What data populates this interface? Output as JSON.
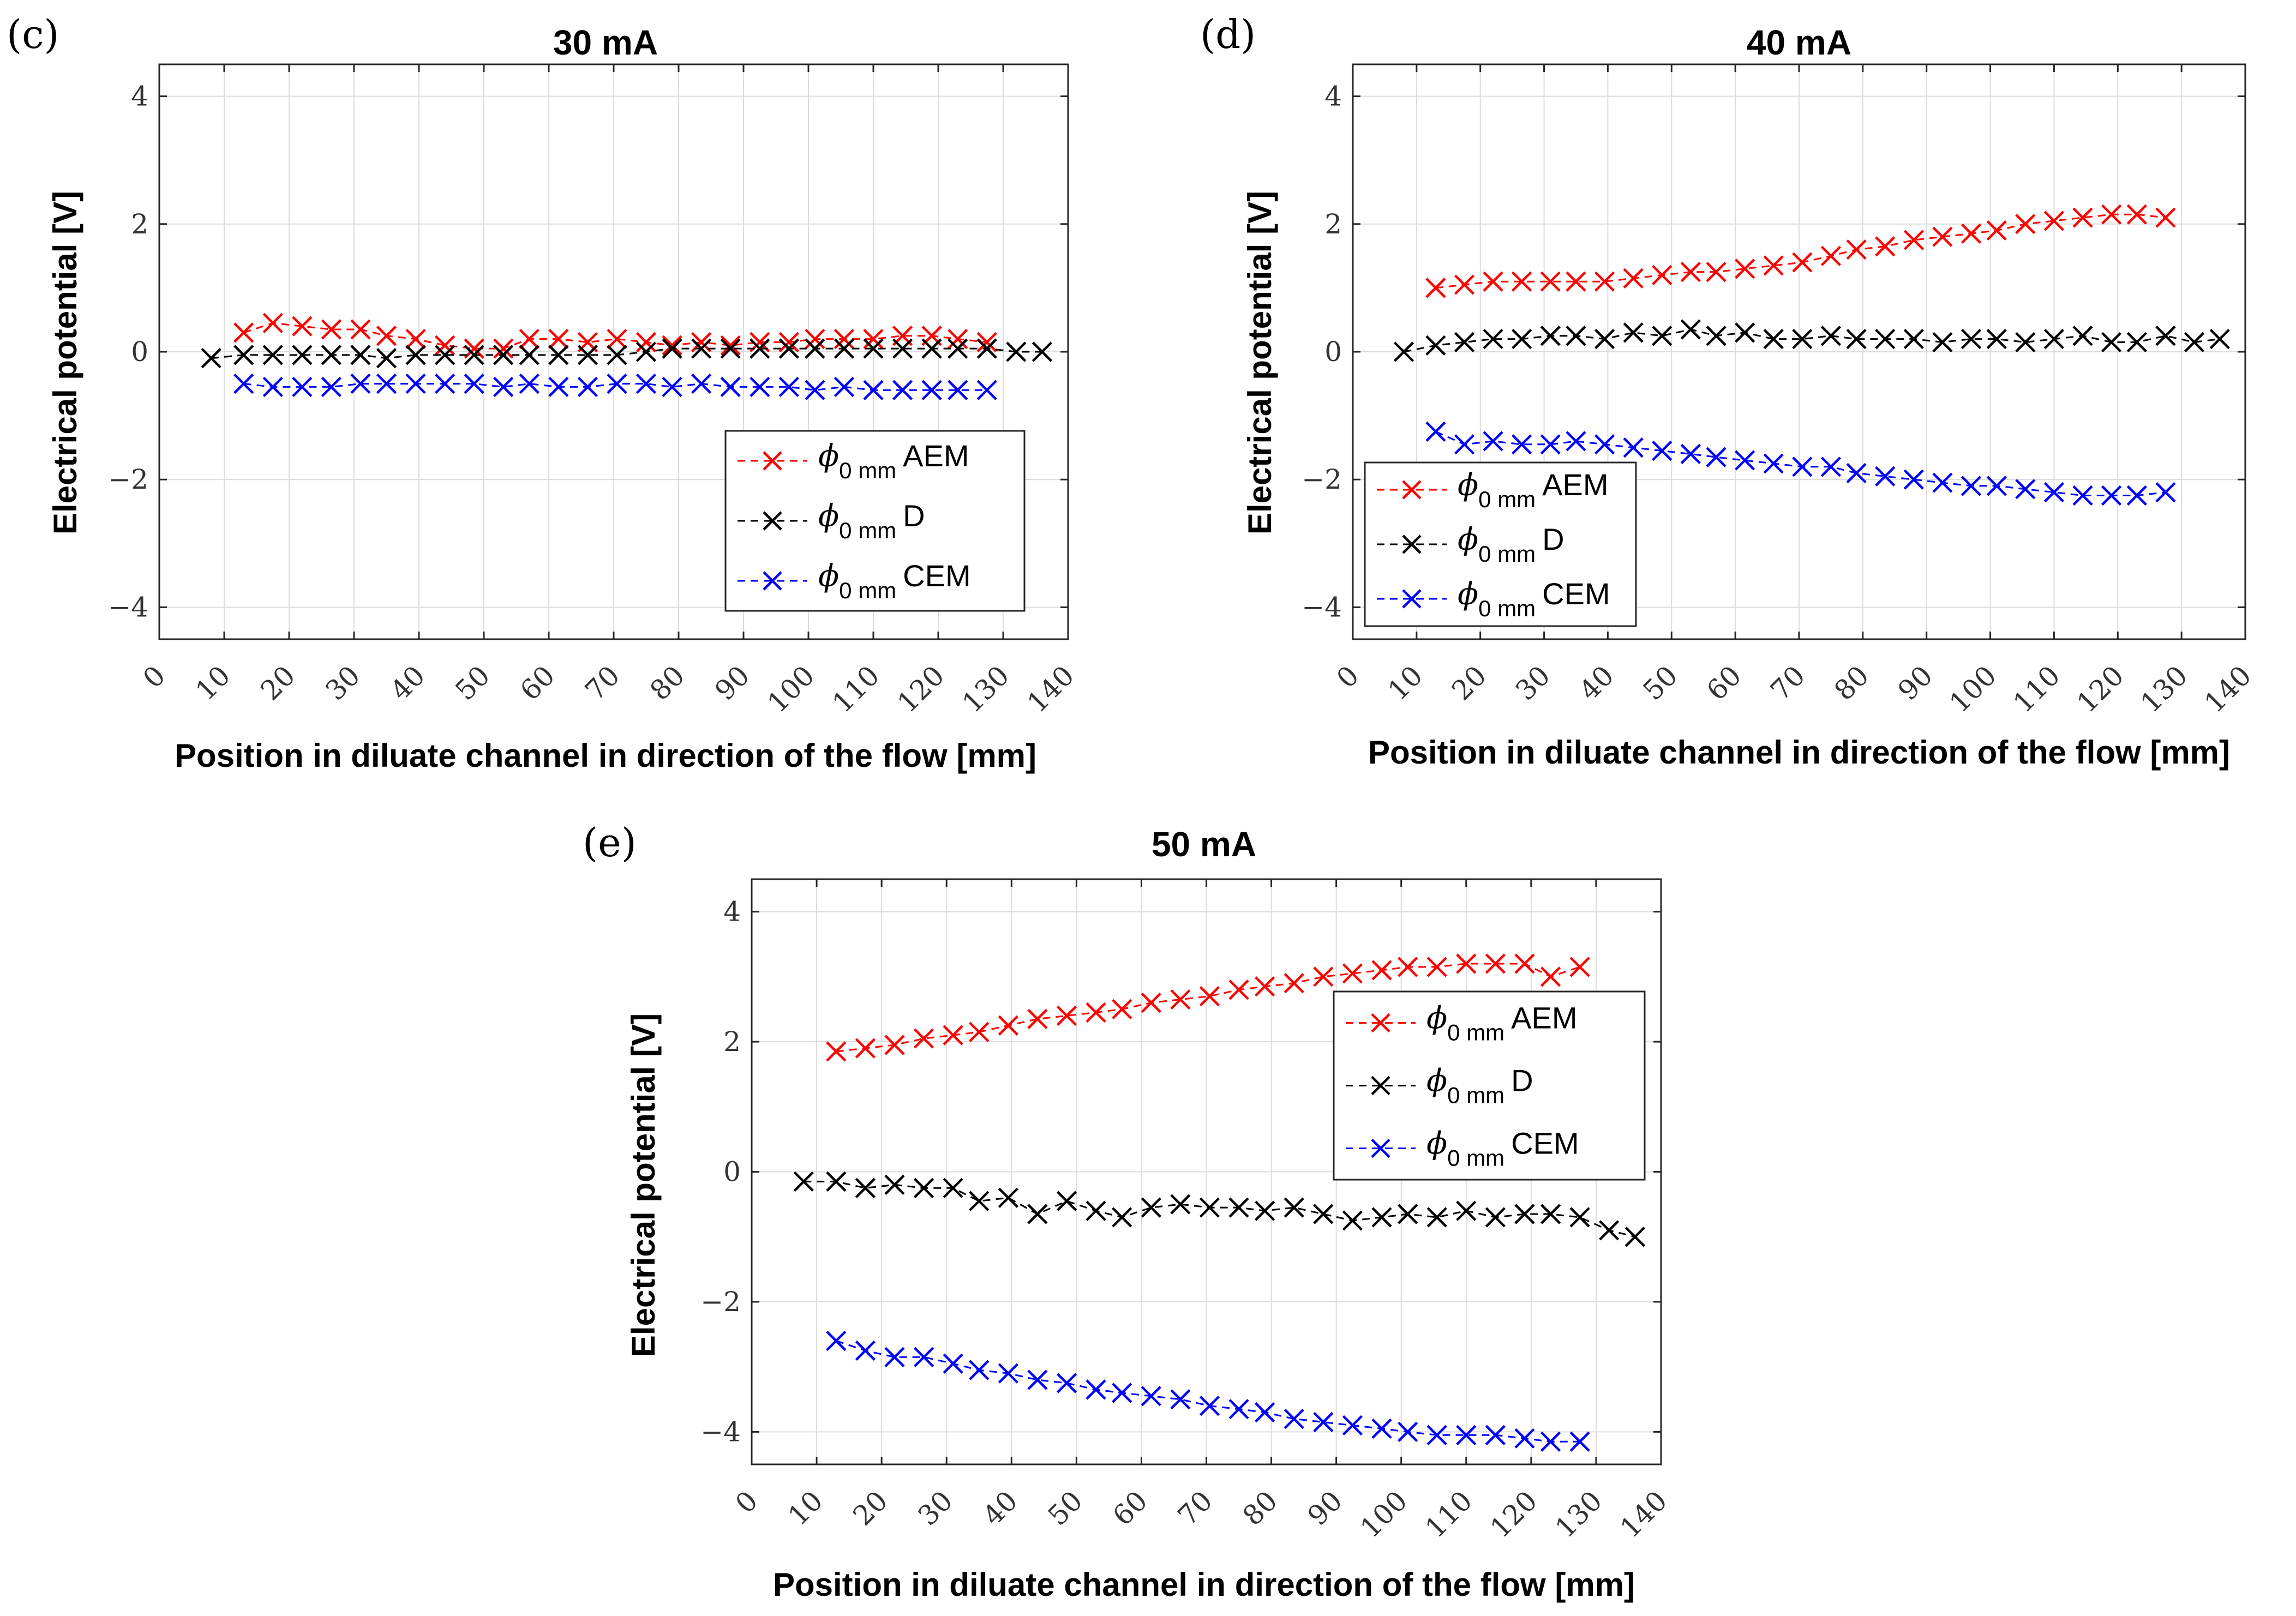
{
  "colors": {
    "AEM": "#ff0000",
    "D": "#000000",
    "CEM": "#0000ff"
  },
  "chart_data": [
    {
      "type": "line",
      "panel": "(c)",
      "title": "30 mA",
      "xlabel": "Position in diluate channel in direction of the flow [mm]",
      "ylabel": "Electrical potential [V]",
      "xlim": [
        0,
        140
      ],
      "ylim": [
        -4.5,
        4.5
      ],
      "xticks": [
        0,
        10,
        20,
        30,
        40,
        50,
        60,
        70,
        80,
        90,
        100,
        110,
        120,
        130,
        140
      ],
      "yticks": [
        -4,
        -2,
        0,
        2,
        4
      ],
      "ytick_labels": [
        "−4",
        "−2",
        "0",
        "2",
        "4"
      ],
      "grid": true,
      "legend_position": "right",
      "legend": [
        {
          "phi": "ϕ",
          "sub": "0 mm",
          "label": "AEM"
        },
        {
          "phi": "ϕ",
          "sub": "0 mm",
          "label": "D"
        },
        {
          "phi": "ϕ",
          "sub": "0 mm",
          "label": "CEM"
        }
      ],
      "series": [
        {
          "name": "AEM",
          "color_key": "AEM",
          "x": [
            13,
            17.5,
            22,
            26.5,
            31,
            35,
            39.5,
            44,
            48.5,
            53,
            57,
            61.5,
            66,
            70.5,
            75,
            79,
            83.5,
            88,
            92.5,
            97,
            101,
            105.5,
            110,
            114.5,
            119,
            123,
            127.5
          ],
          "y": [
            0.3,
            0.45,
            0.4,
            0.35,
            0.35,
            0.25,
            0.2,
            0.1,
            0.05,
            0.05,
            0.2,
            0.2,
            0.15,
            0.2,
            0.15,
            0.1,
            0.15,
            0.1,
            0.15,
            0.15,
            0.2,
            0.2,
            0.2,
            0.25,
            0.25,
            0.2,
            0.15
          ]
        },
        {
          "name": "D",
          "color_key": "D",
          "x": [
            8,
            13,
            17.5,
            22,
            26.5,
            31,
            35,
            39.5,
            44,
            48.5,
            53,
            57,
            61.5,
            66,
            70.5,
            75,
            79,
            83.5,
            88,
            92.5,
            97,
            101,
            105.5,
            110,
            114.5,
            119,
            123,
            127.5,
            132,
            136
          ],
          "y": [
            -0.1,
            -0.05,
            -0.05,
            -0.05,
            -0.05,
            -0.05,
            -0.1,
            -0.05,
            -0.05,
            -0.05,
            -0.05,
            -0.05,
            -0.05,
            -0.05,
            -0.05,
            0.0,
            0.05,
            0.05,
            0.05,
            0.05,
            0.05,
            0.05,
            0.05,
            0.05,
            0.05,
            0.05,
            0.05,
            0.05,
            0.0,
            0.0
          ]
        },
        {
          "name": "CEM",
          "color_key": "CEM",
          "x": [
            13,
            17.5,
            22,
            26.5,
            31,
            35,
            39.5,
            44,
            48.5,
            53,
            57,
            61.5,
            66,
            70.5,
            75,
            79,
            83.5,
            88,
            92.5,
            97,
            101,
            105.5,
            110,
            114.5,
            119,
            123,
            127.5
          ],
          "y": [
            -0.5,
            -0.55,
            -0.55,
            -0.55,
            -0.5,
            -0.5,
            -0.5,
            -0.5,
            -0.5,
            -0.55,
            -0.5,
            -0.55,
            -0.55,
            -0.5,
            -0.5,
            -0.55,
            -0.5,
            -0.55,
            -0.55,
            -0.55,
            -0.6,
            -0.55,
            -0.6,
            -0.6,
            -0.6,
            -0.6,
            -0.6
          ]
        }
      ]
    },
    {
      "type": "line",
      "panel": "(d)",
      "title": "40 mA",
      "xlabel": "Position in diluate channel in direction of the flow [mm]",
      "ylabel": "Electrical potential [V]",
      "xlim": [
        0,
        140
      ],
      "ylim": [
        -4.5,
        4.5
      ],
      "xticks": [
        0,
        10,
        20,
        30,
        40,
        50,
        60,
        70,
        80,
        90,
        100,
        110,
        120,
        130,
        140
      ],
      "yticks": [
        -4,
        -2,
        0,
        2,
        4
      ],
      "ytick_labels": [
        "−4",
        "−2",
        "0",
        "2",
        "4"
      ],
      "grid": true,
      "legend_position": "bottom-left",
      "legend": [
        {
          "phi": "ϕ",
          "sub": "0 mm",
          "label": "AEM"
        },
        {
          "phi": "ϕ",
          "sub": "0 mm",
          "label": "D"
        },
        {
          "phi": "ϕ",
          "sub": "0 mm",
          "label": "CEM"
        }
      ],
      "series": [
        {
          "name": "AEM",
          "color_key": "AEM",
          "x": [
            13,
            17.5,
            22,
            26.5,
            31,
            35,
            39.5,
            44,
            48.5,
            53,
            57,
            61.5,
            66,
            70.5,
            75,
            79,
            83.5,
            88,
            92.5,
            97,
            101,
            105.5,
            110,
            114.5,
            119,
            123,
            127.5
          ],
          "y": [
            1.0,
            1.05,
            1.1,
            1.1,
            1.1,
            1.1,
            1.1,
            1.15,
            1.2,
            1.25,
            1.25,
            1.3,
            1.35,
            1.4,
            1.5,
            1.6,
            1.65,
            1.75,
            1.8,
            1.85,
            1.9,
            2.0,
            2.05,
            2.1,
            2.15,
            2.15,
            2.1
          ]
        },
        {
          "name": "D",
          "color_key": "D",
          "x": [
            8,
            13,
            17.5,
            22,
            26.5,
            31,
            35,
            39.5,
            44,
            48.5,
            53,
            57,
            61.5,
            66,
            70.5,
            75,
            79,
            83.5,
            88,
            92.5,
            97,
            101,
            105.5,
            110,
            114.5,
            119,
            123,
            127.5,
            132,
            136
          ],
          "y": [
            0.0,
            0.1,
            0.15,
            0.2,
            0.2,
            0.25,
            0.25,
            0.2,
            0.3,
            0.25,
            0.35,
            0.25,
            0.3,
            0.2,
            0.2,
            0.25,
            0.2,
            0.2,
            0.2,
            0.15,
            0.2,
            0.2,
            0.15,
            0.2,
            0.25,
            0.15,
            0.15,
            0.25,
            0.15,
            0.2
          ]
        },
        {
          "name": "CEM",
          "color_key": "CEM",
          "x": [
            13,
            17.5,
            22,
            26.5,
            31,
            35,
            39.5,
            44,
            48.5,
            53,
            57,
            61.5,
            66,
            70.5,
            75,
            79,
            83.5,
            88,
            92.5,
            97,
            101,
            105.5,
            110,
            114.5,
            119,
            123,
            127.5
          ],
          "y": [
            -1.25,
            -1.45,
            -1.4,
            -1.45,
            -1.45,
            -1.4,
            -1.45,
            -1.5,
            -1.55,
            -1.6,
            -1.65,
            -1.7,
            -1.75,
            -1.8,
            -1.8,
            -1.9,
            -1.95,
            -2.0,
            -2.05,
            -2.1,
            -2.1,
            -2.15,
            -2.2,
            -2.25,
            -2.25,
            -2.25,
            -2.2
          ]
        }
      ]
    },
    {
      "type": "line",
      "panel": "(e)",
      "title": "50 mA",
      "xlabel": "Position in diluate channel in direction of the flow [mm]",
      "ylabel": "Electrical potential [V]",
      "xlim": [
        0,
        140
      ],
      "ylim": [
        -4.5,
        4.5
      ],
      "xticks": [
        0,
        10,
        20,
        30,
        40,
        50,
        60,
        70,
        80,
        90,
        100,
        110,
        120,
        130,
        140
      ],
      "yticks": [
        -4,
        -2,
        0,
        2,
        4
      ],
      "ytick_labels": [
        "−4",
        "−2",
        "0",
        "2",
        "4"
      ],
      "grid": true,
      "legend_position": "top-right",
      "legend": [
        {
          "phi": "ϕ",
          "sub": "0 mm",
          "label": "AEM"
        },
        {
          "phi": "ϕ",
          "sub": "0 mm",
          "label": "D"
        },
        {
          "phi": "ϕ",
          "sub": "0 mm",
          "label": "CEM"
        }
      ],
      "series": [
        {
          "name": "AEM",
          "color_key": "AEM",
          "x": [
            13,
            17.5,
            22,
            26.5,
            31,
            35,
            39.5,
            44,
            48.5,
            53,
            57,
            61.5,
            66,
            70.5,
            75,
            79,
            83.5,
            88,
            92.5,
            97,
            101,
            105.5,
            110,
            114.5,
            119,
            123,
            127.5
          ],
          "y": [
            1.85,
            1.9,
            1.95,
            2.05,
            2.1,
            2.15,
            2.25,
            2.35,
            2.4,
            2.45,
            2.5,
            2.6,
            2.65,
            2.7,
            2.8,
            2.85,
            2.9,
            3.0,
            3.05,
            3.1,
            3.15,
            3.15,
            3.2,
            3.2,
            3.2,
            3.0,
            3.15
          ]
        },
        {
          "name": "D",
          "color_key": "D",
          "x": [
            8,
            13,
            17.5,
            22,
            26.5,
            31,
            35,
            39.5,
            44,
            48.5,
            53,
            57,
            61.5,
            66,
            70.5,
            75,
            79,
            83.5,
            88,
            92.5,
            97,
            101,
            105.5,
            110,
            114.5,
            119,
            123,
            127.5,
            132,
            136
          ],
          "y": [
            -0.15,
            -0.15,
            -0.25,
            -0.2,
            -0.25,
            -0.25,
            -0.45,
            -0.4,
            -0.65,
            -0.45,
            -0.6,
            -0.7,
            -0.55,
            -0.5,
            -0.55,
            -0.55,
            -0.6,
            -0.55,
            -0.65,
            -0.75,
            -0.7,
            -0.65,
            -0.7,
            -0.6,
            -0.7,
            -0.65,
            -0.65,
            -0.7,
            -0.9,
            -1.0
          ]
        },
        {
          "name": "CEM",
          "color_key": "CEM",
          "x": [
            13,
            17.5,
            22,
            26.5,
            31,
            35,
            39.5,
            44,
            48.5,
            53,
            57,
            61.5,
            66,
            70.5,
            75,
            79,
            83.5,
            88,
            92.5,
            97,
            101,
            105.5,
            110,
            114.5,
            119,
            123,
            127.5
          ],
          "y": [
            -2.6,
            -2.75,
            -2.85,
            -2.85,
            -2.95,
            -3.05,
            -3.1,
            -3.2,
            -3.25,
            -3.35,
            -3.4,
            -3.45,
            -3.5,
            -3.6,
            -3.65,
            -3.7,
            -3.8,
            -3.85,
            -3.9,
            -3.95,
            -4.0,
            -4.05,
            -4.05,
            -4.05,
            -4.1,
            -4.15,
            -4.15
          ]
        }
      ]
    }
  ]
}
